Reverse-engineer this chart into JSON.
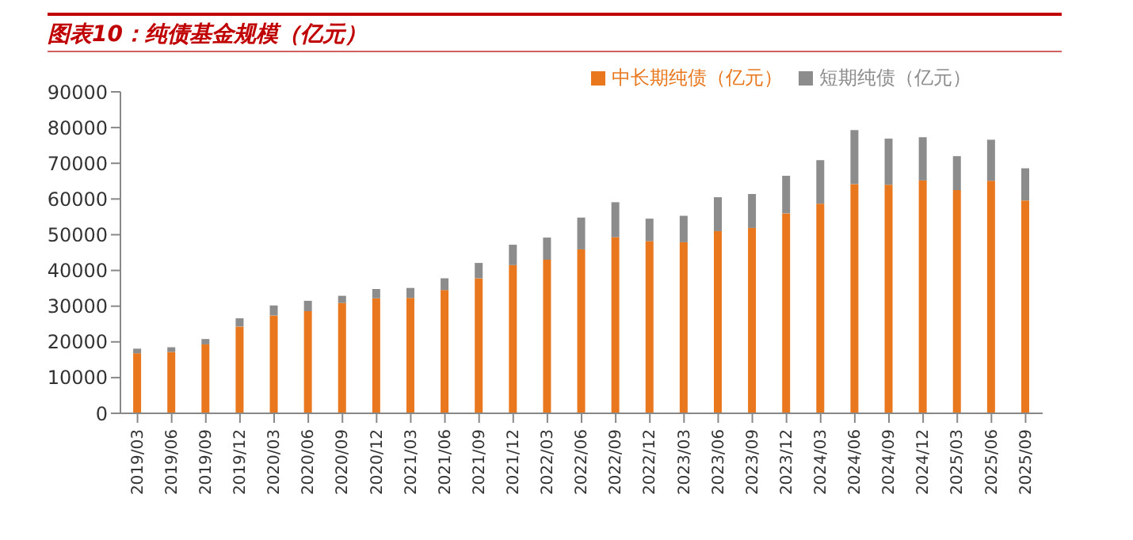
{
  "chart_data": {
    "type": "bar",
    "title": "图表10：纯债基金规模（亿元）",
    "stacked": true,
    "legend": "top",
    "grid": false,
    "categories": [
      "2019/03",
      "2019/06",
      "2019/09",
      "2019/12",
      "2020/03",
      "2020/06",
      "2020/09",
      "2020/12",
      "2021/03",
      "2021/06",
      "2021/09",
      "2021/12",
      "2022/03",
      "2022/06",
      "2022/09",
      "2022/12",
      "2023/03",
      "2023/06",
      "2023/09",
      "2023/12",
      "2024/03",
      "2024/06",
      "2024/09",
      "2024/12",
      "2025/03",
      "2025/06",
      "2025/09"
    ],
    "series": [
      {
        "name": "中长期纯债（亿元）",
        "color": "#e8771e",
        "values": [
          16800,
          17200,
          19300,
          24300,
          27400,
          28600,
          30900,
          32200,
          32300,
          34500,
          37800,
          41500,
          43000,
          45900,
          49300,
          48200,
          47900,
          51000,
          51900,
          56000,
          58700,
          64200,
          64000,
          65200,
          62500,
          65100,
          59600
        ]
      },
      {
        "name": "短期纯债（亿元）",
        "color": "#8c8c8c",
        "values": [
          1300,
          1300,
          1500,
          2300,
          2800,
          2900,
          2000,
          2600,
          2800,
          3300,
          4300,
          5700,
          6200,
          8900,
          9800,
          6300,
          7400,
          9500,
          9500,
          10500,
          12200,
          15100,
          12900,
          12100,
          9500,
          11500,
          9000
        ]
      }
    ],
    "ylim": [
      0,
      90000
    ],
    "yticks": [
      0,
      10000,
      20000,
      30000,
      40000,
      50000,
      60000,
      70000,
      80000,
      90000
    ]
  }
}
